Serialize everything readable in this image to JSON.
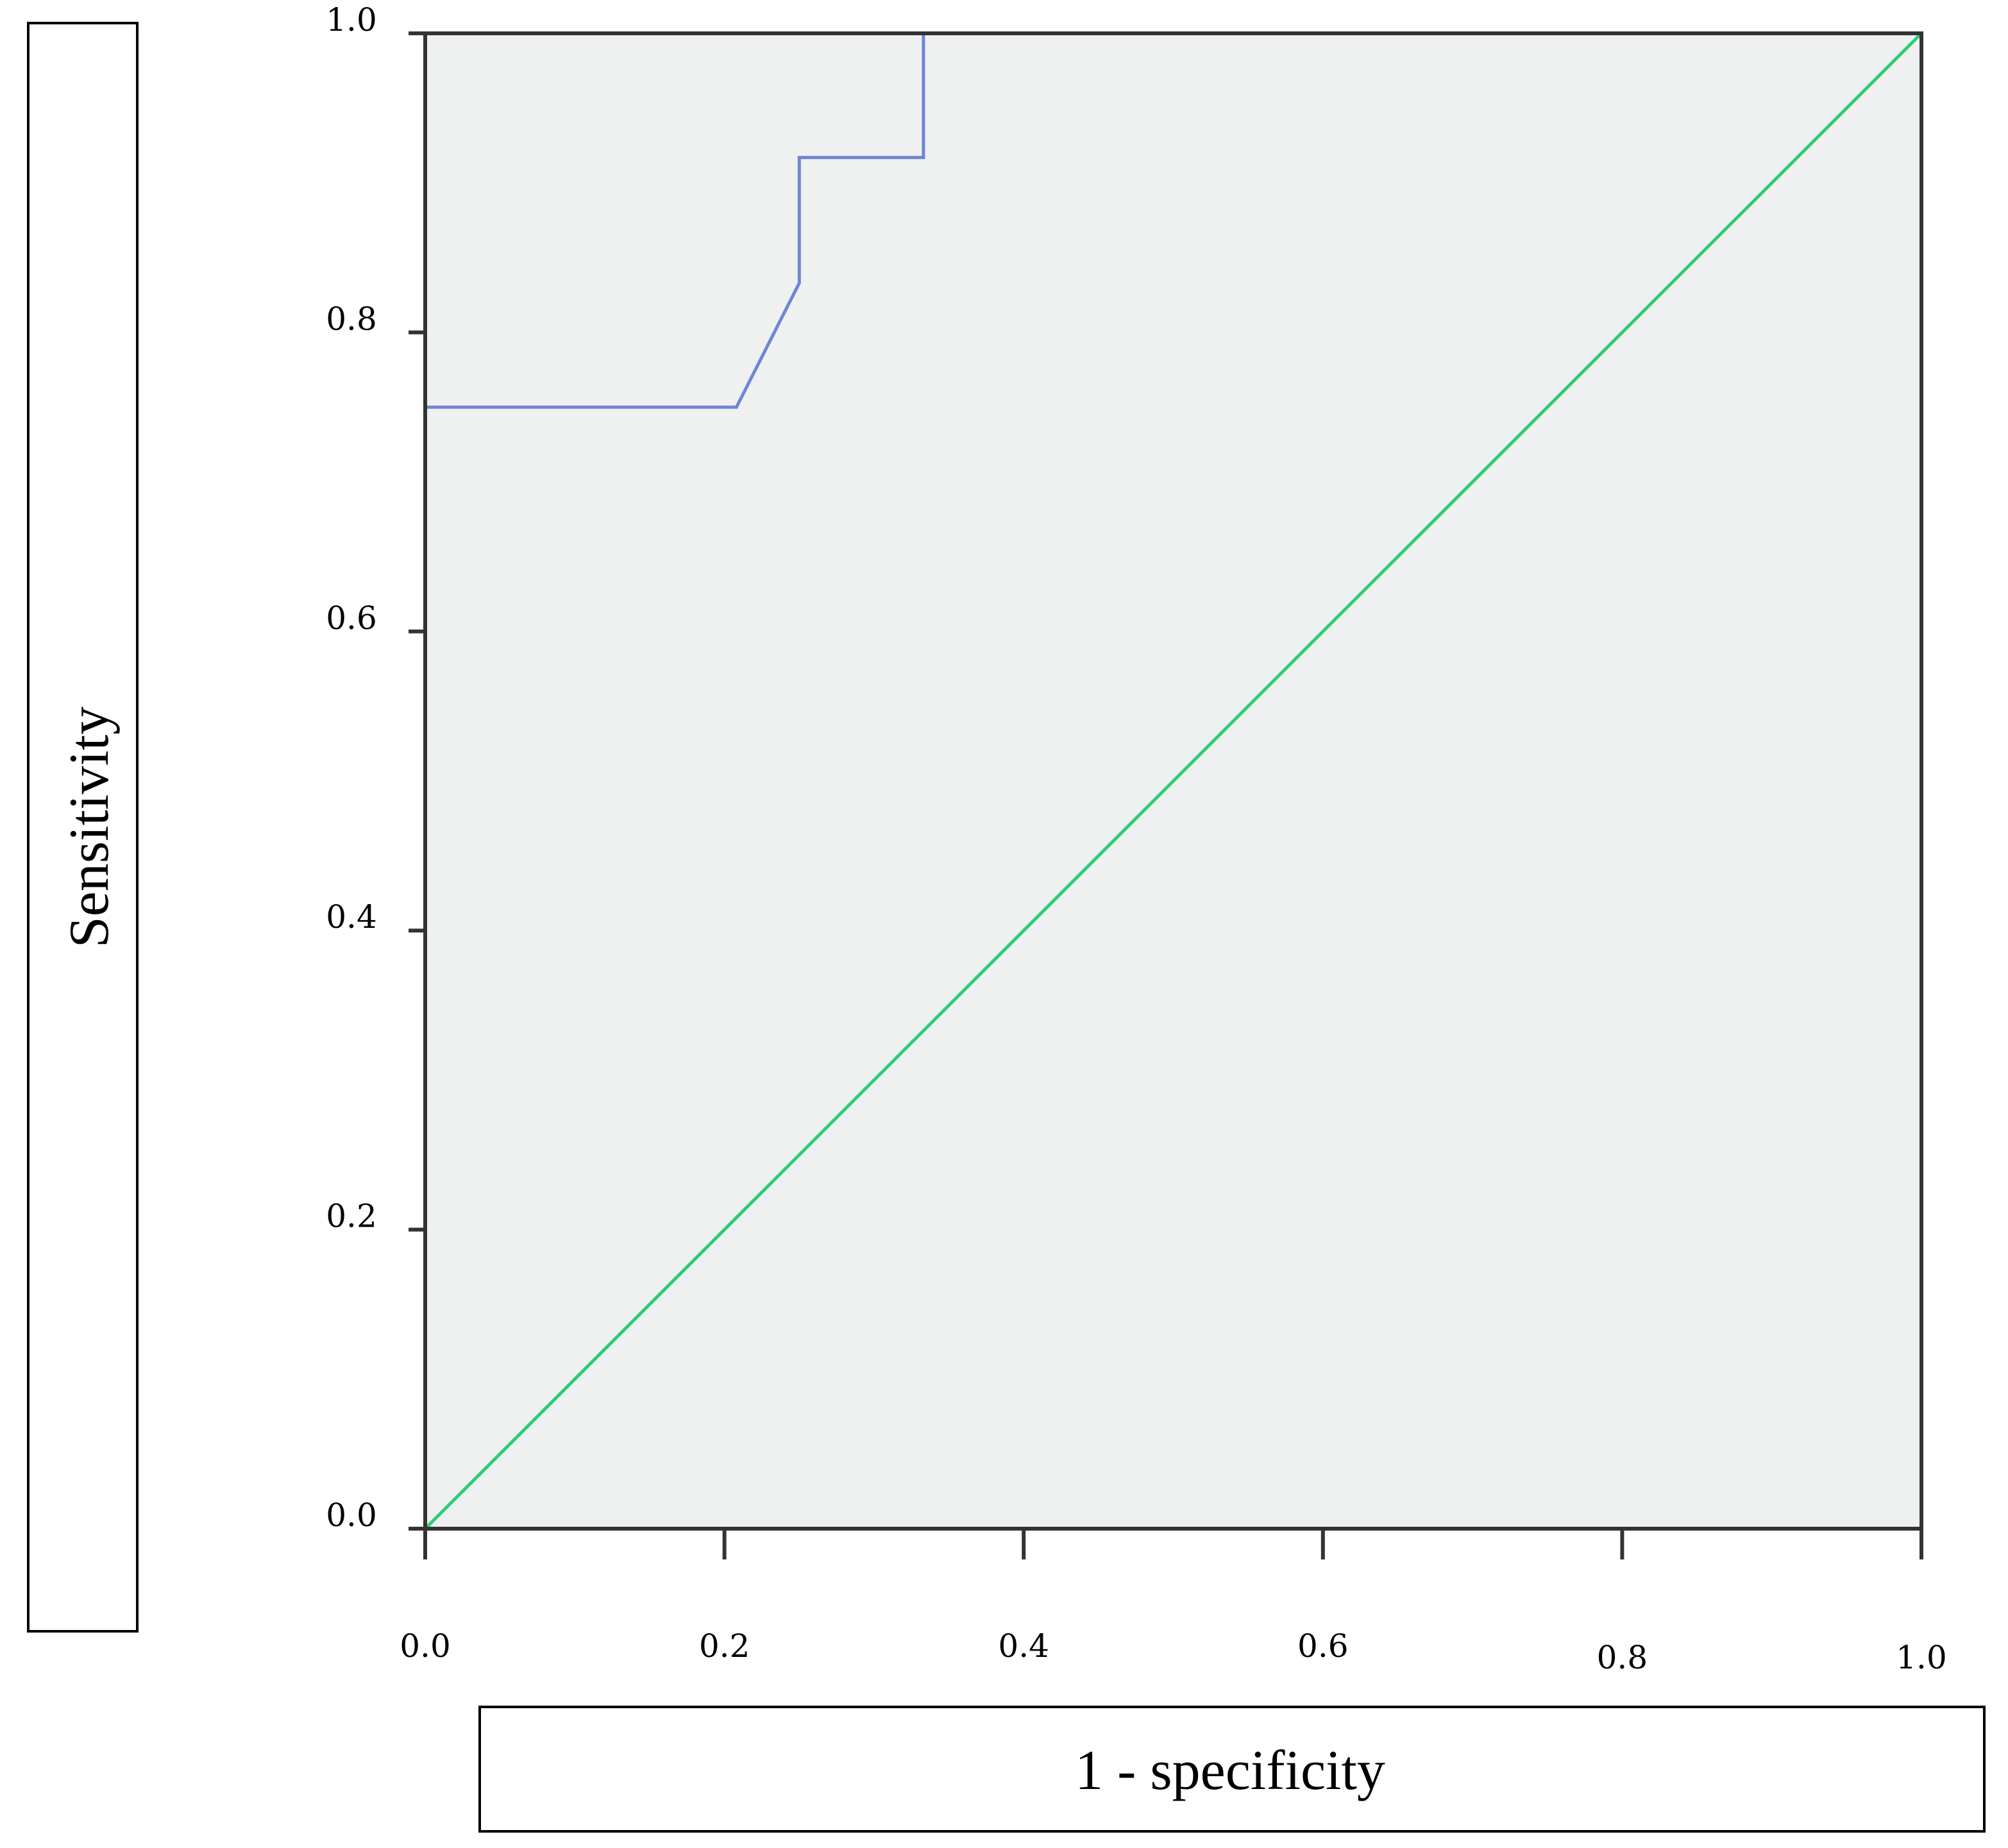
{
  "chart_data": {
    "type": "line",
    "xlabel": "1 - specificity",
    "ylabel": "Sensitivity",
    "xlim": [
      0,
      1
    ],
    "ylim": [
      0,
      1
    ],
    "x_ticks": [
      "0.0",
      "0.2",
      "0.4",
      "0.6",
      "0.8",
      "1.0"
    ],
    "y_ticks": [
      "0.0",
      "0.2",
      "0.4",
      "0.6",
      "0.8",
      "1.0"
    ],
    "grid": false,
    "series": [
      {
        "x": [
          0.0,
          0.0,
          0.208,
          0.25,
          0.25,
          0.333,
          0.333,
          1.0
        ],
        "y": [
          0.0,
          0.75,
          0.75,
          0.833,
          0.917,
          0.917,
          1.0,
          1.0
        ],
        "color": "#6f86d6"
      },
      {
        "x": [
          0.0,
          1.0
        ],
        "y": [
          0.0,
          1.0
        ],
        "color": "#2ecc71"
      }
    ],
    "plot_background": "#eff0f0"
  }
}
